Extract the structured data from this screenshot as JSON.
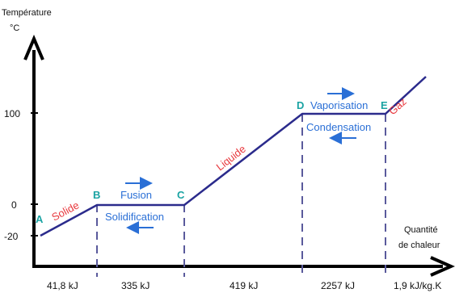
{
  "axes": {
    "y_title_line1": "Température",
    "y_title_line2": "°C",
    "x_title_line1": "Quantité",
    "x_title_line2": "de chaleur",
    "y_ticks": [
      "100",
      "0",
      "-20"
    ]
  },
  "points": [
    "A",
    "B",
    "C",
    "D",
    "E"
  ],
  "states": {
    "solid": "Solide",
    "liquid": "Liquide",
    "gas": "Gaz"
  },
  "processes": {
    "fusion": "Fusion",
    "solidification": "Solidification",
    "vaporisation": "Vaporisation",
    "condensation": "Condensation"
  },
  "energies": [
    "41,8 kJ",
    "335 kJ",
    "419 kJ",
    "2257 kJ",
    "1,9 kJ/kg.K"
  ],
  "colors": {
    "curve": "#2b2b8c",
    "points": "#1aa3a3",
    "states": "#e8383d",
    "processes": "#2a6fd6",
    "axes": "#000000"
  }
}
